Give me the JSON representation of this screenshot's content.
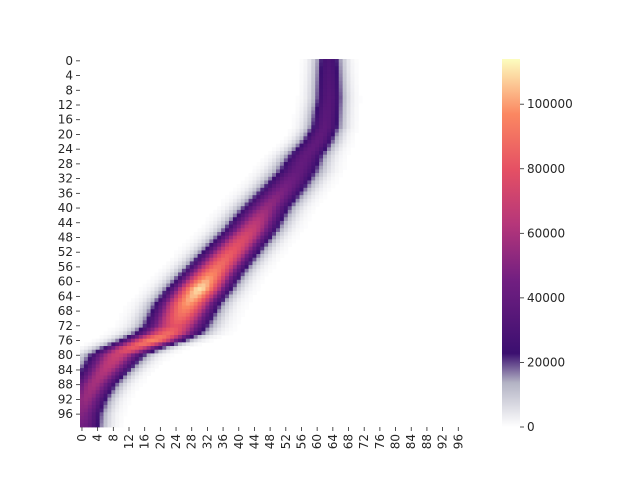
{
  "chart_data": {
    "type": "heatmap",
    "title": "",
    "xlabel": "",
    "ylabel": "",
    "n_rows": 100,
    "n_cols": 100,
    "x_tick_labels": [
      "0",
      "4",
      "8",
      "12",
      "16",
      "20",
      "24",
      "28",
      "32",
      "36",
      "40",
      "44",
      "48",
      "52",
      "56",
      "60",
      "64",
      "68",
      "72",
      "76",
      "80",
      "84",
      "88",
      "92",
      "96"
    ],
    "y_tick_labels": [
      "0",
      "4",
      "8",
      "12",
      "16",
      "20",
      "24",
      "28",
      "32",
      "36",
      "40",
      "44",
      "48",
      "52",
      "56",
      "60",
      "64",
      "68",
      "72",
      "76",
      "80",
      "84",
      "88",
      "92",
      "96"
    ],
    "colorbar": {
      "min": 0,
      "max": 114000,
      "tick_labels": [
        "0",
        "20000",
        "40000",
        "60000",
        "80000",
        "100000"
      ],
      "tick_values": [
        0,
        20000,
        40000,
        60000,
        80000,
        100000
      ],
      "colormap": "magma-like (white at 0 → dark purple → magenta → orange → light yellow)"
    },
    "ridge": {
      "description": "approximate column centre of the bright band for each row (row, col)",
      "points": [
        [
          0,
          63
        ],
        [
          10,
          63
        ],
        [
          18,
          62
        ],
        [
          22,
          60
        ],
        [
          26,
          57
        ],
        [
          30,
          55
        ],
        [
          34,
          52
        ],
        [
          40,
          47
        ],
        [
          46,
          43
        ],
        [
          52,
          38
        ],
        [
          58,
          33
        ],
        [
          62,
          30
        ],
        [
          66,
          27
        ],
        [
          70,
          25
        ],
        [
          72,
          24
        ],
        [
          74,
          22
        ],
        [
          76,
          18
        ],
        [
          78,
          13
        ],
        [
          80,
          9
        ],
        [
          84,
          6
        ],
        [
          88,
          3
        ],
        [
          92,
          1
        ],
        [
          96,
          0
        ],
        [
          99,
          0
        ]
      ],
      "half_width_cols": [
        [
          0,
          2.5
        ],
        [
          20,
          3
        ],
        [
          30,
          4
        ],
        [
          60,
          4.5
        ],
        [
          74,
          5
        ],
        [
          85,
          4
        ],
        [
          99,
          3.5
        ]
      ],
      "peak_values": [
        [
          0,
          30000
        ],
        [
          20,
          38000
        ],
        [
          30,
          40000
        ],
        [
          40,
          55000
        ],
        [
          48,
          75000
        ],
        [
          56,
          90000
        ],
        [
          62,
          110000
        ],
        [
          66,
          100000
        ],
        [
          72,
          80000
        ],
        [
          76,
          95000
        ],
        [
          80,
          70000
        ],
        [
          86,
          60000
        ],
        [
          92,
          55000
        ],
        [
          99,
          45000
        ]
      ]
    }
  }
}
